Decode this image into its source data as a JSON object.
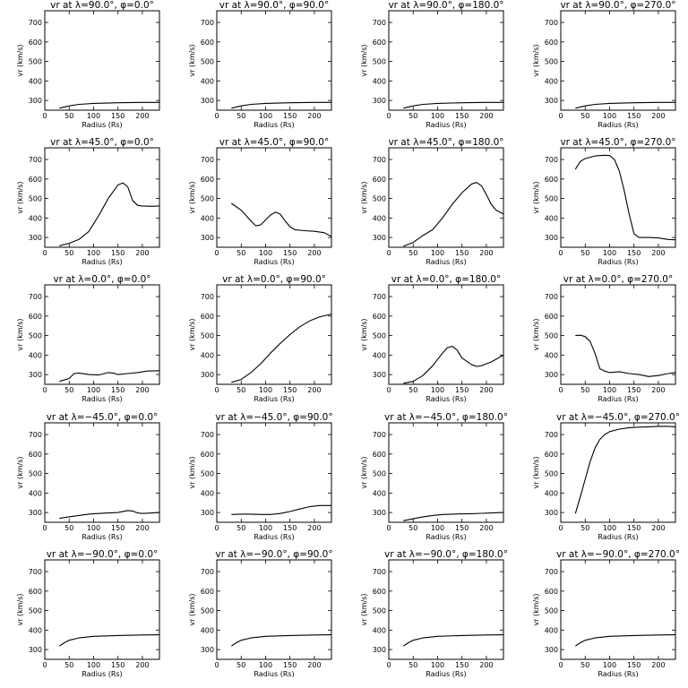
{
  "figure": {
    "x_label": "Radius (Rs)",
    "y_label": "vr (km/s)",
    "x_ticks": [
      0,
      50,
      100,
      150,
      200
    ],
    "y_ticks": [
      300,
      400,
      500,
      600,
      700
    ],
    "xlim": [
      0,
      235
    ],
    "ylim": [
      250,
      760
    ]
  },
  "chart_data": [
    {
      "type": "line",
      "title": "vr at λ=90.0°, φ=0.0°",
      "x": [
        30,
        50,
        70,
        100,
        150,
        200,
        235
      ],
      "values": [
        260,
        272,
        280,
        285,
        288,
        290,
        290
      ]
    },
    {
      "type": "line",
      "title": "vr at λ=90.0°, φ=90.0°",
      "x": [
        30,
        50,
        70,
        100,
        150,
        200,
        235
      ],
      "values": [
        260,
        272,
        280,
        285,
        288,
        290,
        290
      ]
    },
    {
      "type": "line",
      "title": "vr at λ=90.0°, φ=180.0°",
      "x": [
        30,
        50,
        70,
        100,
        150,
        200,
        235
      ],
      "values": [
        260,
        272,
        280,
        285,
        288,
        290,
        290
      ]
    },
    {
      "type": "line",
      "title": "vr at λ=90.0°, φ=270.0°",
      "x": [
        30,
        50,
        70,
        100,
        150,
        200,
        235
      ],
      "values": [
        260,
        272,
        280,
        285,
        288,
        290,
        290
      ]
    },
    {
      "type": "line",
      "title": "vr at λ=45.0°, φ=0.0°",
      "x": [
        30,
        50,
        70,
        90,
        110,
        130,
        150,
        160,
        170,
        180,
        190,
        200,
        220,
        235
      ],
      "values": [
        258,
        270,
        290,
        330,
        410,
        500,
        570,
        580,
        560,
        490,
        465,
        462,
        460,
        462
      ]
    },
    {
      "type": "line",
      "title": "vr at λ=45.0°, φ=90.0°",
      "x": [
        30,
        50,
        70,
        80,
        90,
        110,
        120,
        130,
        140,
        150,
        160,
        180,
        200,
        220,
        235
      ],
      "values": [
        475,
        440,
        385,
        360,
        365,
        415,
        430,
        420,
        385,
        355,
        340,
        335,
        332,
        325,
        305
      ]
    },
    {
      "type": "line",
      "title": "vr at λ=45.0°, φ=180.0°",
      "x": [
        30,
        50,
        70,
        90,
        110,
        130,
        150,
        170,
        180,
        190,
        200,
        210,
        220,
        235
      ],
      "values": [
        255,
        275,
        310,
        340,
        400,
        470,
        530,
        575,
        582,
        565,
        520,
        470,
        440,
        420
      ]
    },
    {
      "type": "line",
      "title": "vr at λ=45.0°, φ=270.0°",
      "x": [
        30,
        40,
        50,
        70,
        90,
        100,
        110,
        120,
        130,
        140,
        150,
        160,
        180,
        200,
        220,
        235
      ],
      "values": [
        650,
        690,
        705,
        718,
        722,
        720,
        700,
        640,
        540,
        420,
        320,
        300,
        300,
        298,
        290,
        288
      ]
    },
    {
      "type": "line",
      "title": "vr at λ=0.0°, φ=0.0°",
      "x": [
        30,
        50,
        60,
        70,
        90,
        110,
        130,
        140,
        150,
        170,
        190,
        210,
        235
      ],
      "values": [
        265,
        280,
        305,
        308,
        300,
        298,
        310,
        308,
        300,
        305,
        310,
        318,
        320
      ]
    },
    {
      "type": "line",
      "title": "vr at λ=0.0°, φ=90.0°",
      "x": [
        30,
        50,
        70,
        90,
        110,
        130,
        150,
        170,
        190,
        210,
        235
      ],
      "values": [
        260,
        275,
        310,
        355,
        410,
        460,
        505,
        545,
        575,
        595,
        610
      ]
    },
    {
      "type": "line",
      "title": "vr at λ=0.0°, φ=180.0°",
      "x": [
        30,
        50,
        70,
        90,
        110,
        120,
        130,
        140,
        150,
        170,
        180,
        190,
        210,
        235
      ],
      "values": [
        255,
        265,
        295,
        345,
        410,
        438,
        445,
        425,
        385,
        350,
        342,
        345,
        365,
        400
      ]
    },
    {
      "type": "line",
      "title": "vr at λ=0.0°, φ=270.0°",
      "x": [
        30,
        40,
        50,
        60,
        70,
        80,
        90,
        100,
        120,
        140,
        160,
        180,
        200,
        220,
        235
      ],
      "values": [
        500,
        502,
        495,
        470,
        410,
        330,
        318,
        310,
        315,
        305,
        300,
        290,
        295,
        305,
        310
      ]
    },
    {
      "type": "line",
      "title": "vr at λ=−45.0°, φ=0.0°",
      "x": [
        30,
        50,
        70,
        90,
        110,
        130,
        150,
        170,
        180,
        190,
        200,
        220,
        235
      ],
      "values": [
        270,
        278,
        285,
        292,
        295,
        298,
        300,
        310,
        308,
        298,
        295,
        298,
        300
      ]
    },
    {
      "type": "line",
      "title": "vr at λ=−45.0°, φ=90.0°",
      "x": [
        30,
        50,
        70,
        90,
        110,
        130,
        150,
        170,
        190,
        210,
        235
      ],
      "values": [
        290,
        292,
        292,
        290,
        290,
        295,
        305,
        318,
        330,
        336,
        336
      ]
    },
    {
      "type": "line",
      "title": "vr at λ=−45.0°, φ=180.0°",
      "x": [
        30,
        50,
        70,
        90,
        110,
        130,
        150,
        170,
        190,
        210,
        235
      ],
      "values": [
        258,
        268,
        278,
        285,
        290,
        292,
        293,
        294,
        296,
        298,
        300
      ]
    },
    {
      "type": "line",
      "title": "vr at λ=−45.0°, φ=270.0°",
      "x": [
        30,
        40,
        50,
        60,
        70,
        80,
        90,
        100,
        120,
        140,
        160,
        180,
        200,
        220,
        235
      ],
      "values": [
        295,
        380,
        470,
        560,
        630,
        675,
        700,
        715,
        728,
        735,
        738,
        740,
        742,
        742,
        740
      ]
    },
    {
      "type": "line",
      "title": "vr at λ=−90.0°, φ=0.0°",
      "x": [
        30,
        40,
        50,
        70,
        100,
        150,
        200,
        235
      ],
      "values": [
        318,
        335,
        348,
        360,
        368,
        372,
        375,
        376
      ]
    },
    {
      "type": "line",
      "title": "vr at λ=−90.0°, φ=90.0°",
      "x": [
        30,
        40,
        50,
        70,
        100,
        150,
        200,
        235
      ],
      "values": [
        318,
        335,
        348,
        360,
        368,
        372,
        375,
        376
      ]
    },
    {
      "type": "line",
      "title": "vr at λ=−90.0°, φ=180.0°",
      "x": [
        30,
        40,
        50,
        70,
        100,
        150,
        200,
        235
      ],
      "values": [
        318,
        335,
        348,
        360,
        368,
        372,
        375,
        376
      ]
    },
    {
      "type": "line",
      "title": "vr at λ=−90.0°, φ=270.0°",
      "x": [
        30,
        40,
        50,
        70,
        100,
        150,
        200,
        235
      ],
      "values": [
        318,
        335,
        348,
        360,
        368,
        372,
        375,
        376
      ]
    }
  ]
}
